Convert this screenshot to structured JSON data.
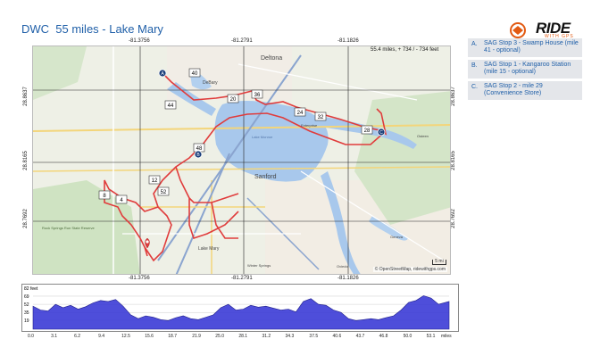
{
  "page": {
    "title": "DWC  55 miles - Lake Mary",
    "logo_text": "RIDE",
    "logo_sub": "WITH GPS",
    "colors": {
      "title": "#1f5fa8",
      "route": "#e03c3c",
      "water": "#a8c8ec",
      "logo_accent": "#e25a12"
    }
  },
  "map": {
    "stats": "55.4 miles, + 734 / - 734 feet",
    "attribution": "© OpenStreetMap, ridewithgps.com",
    "scale_label": "5 mi",
    "lon_labels": [
      "-81.3756",
      "-81.2791",
      "-81.1826"
    ],
    "lat_labels": [
      "28.8637",
      "28.8165",
      "28.7692"
    ],
    "markers": [
      {
        "letter": "A",
        "label": "A"
      },
      {
        "letter": "B",
        "label": "B"
      },
      {
        "letter": "C",
        "label": "C"
      }
    ],
    "road_shields": [
      "40",
      "44",
      "20",
      "36",
      "24",
      "32",
      "28",
      "48",
      "12",
      "52",
      "8",
      "4"
    ],
    "place_labels": [
      "Deltona",
      "Sanford",
      "Lake Monroe",
      "Lake Mary",
      "Rock Springs Run State Reserve",
      "DeBary",
      "Enterprise",
      "Osteen",
      "Geneva",
      "Oviedo",
      "Winter Springs"
    ],
    "icons": [
      "start-pin-icon"
    ]
  },
  "legend": [
    {
      "letter": "A.",
      "text": "SAG Stop 3 - Swamp House (mile 41 - optional)"
    },
    {
      "letter": "B.",
      "text": "SAG Stop 1 - Kangaroo Station (mile 15 - optional)"
    },
    {
      "letter": "C.",
      "text": "SAG Stop 2 - mile 29 (Convenience Store)"
    }
  ],
  "chart_data": {
    "type": "area",
    "title": "",
    "ylabel": "82 feet",
    "y_ticks": [
      19,
      35,
      52,
      69
    ],
    "ylim": [
      0,
      82
    ],
    "x_ticks": [
      "0.0",
      "3.1",
      "6.2",
      "9.4",
      "12.5",
      "15.6",
      "18.7",
      "21.9",
      "25.0",
      "28.1",
      "31.2",
      "34.3",
      "37.5",
      "40.6",
      "43.7",
      "46.8",
      "50.0",
      "53.1"
    ],
    "x_unit": "miles",
    "xlim": [
      0,
      55.4
    ],
    "series": [
      {
        "x": [
          0,
          1,
          2,
          3,
          4,
          5,
          6,
          7,
          8,
          9,
          10,
          11,
          12,
          13,
          14,
          15,
          16,
          17,
          18,
          19,
          20,
          21,
          22,
          23,
          24,
          25,
          26,
          27,
          28,
          29,
          30,
          31,
          32,
          33,
          34,
          35,
          36,
          37,
          38,
          39,
          40,
          41,
          42,
          43,
          44,
          45,
          46,
          47,
          48,
          49,
          50,
          51,
          52,
          53,
          54,
          55.4
        ],
        "values": [
          48,
          40,
          38,
          52,
          45,
          50,
          42,
          47,
          55,
          60,
          58,
          62,
          48,
          30,
          22,
          28,
          25,
          20,
          18,
          24,
          28,
          22,
          20,
          25,
          30,
          45,
          52,
          40,
          42,
          50,
          46,
          48,
          44,
          40,
          42,
          36,
          58,
          64,
          52,
          50,
          40,
          35,
          22,
          18,
          20,
          22,
          20,
          24,
          28,
          40,
          56,
          60,
          70,
          65,
          52,
          58
        ]
      }
    ]
  }
}
